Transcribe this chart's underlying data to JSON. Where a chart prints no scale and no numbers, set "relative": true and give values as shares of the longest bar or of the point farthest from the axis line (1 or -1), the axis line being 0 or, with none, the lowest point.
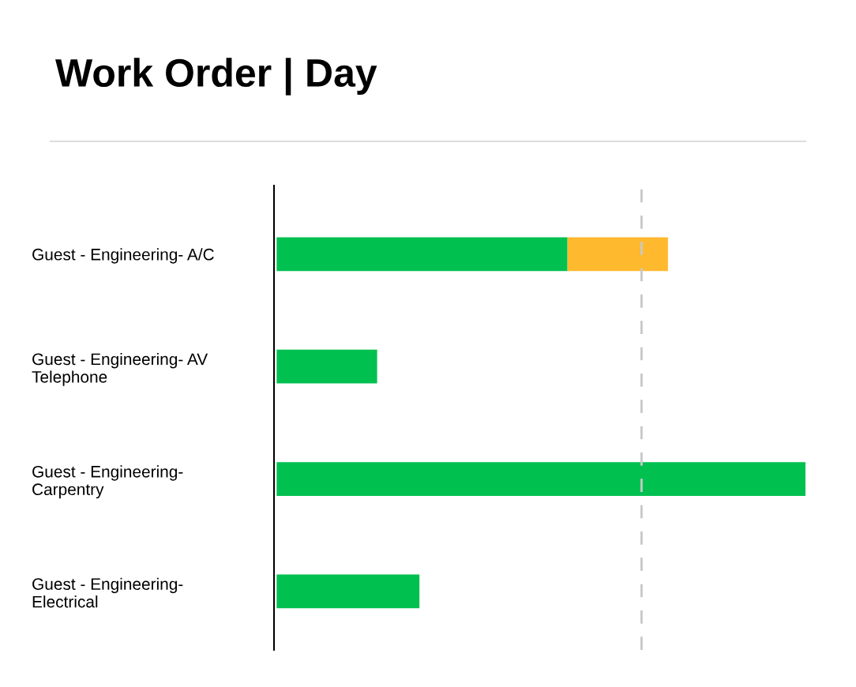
{
  "chart_data": {
    "type": "bar",
    "title": "Work Order | Day",
    "orientation": "horizontal",
    "stacked": true,
    "relative": true,
    "tick_labels": "y",
    "grid": false,
    "legend": false,
    "categories": [
      "Guest - Engineering- A/C",
      "Guest - Engineering- AV\nTelephone",
      "Guest - Engineering-\nCarpentry",
      "Guest - Engineering-\nElectrical"
    ],
    "series": [
      {
        "color": "#00c050",
        "values": [
          0.55,
          0.19,
          1,
          0.27
        ]
      },
      {
        "color": "#ffb92e",
        "values": [
          0.19,
          null,
          null,
          null
        ]
      }
    ],
    "ref_lines": [
      {
        "axis": "x",
        "value": 0.69,
        "color": "#c8c8c8",
        "line_style": "dashed"
      }
    ]
  }
}
